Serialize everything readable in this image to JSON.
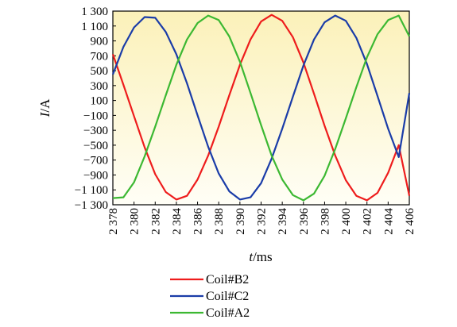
{
  "chart_data": {
    "type": "line",
    "title": "",
    "xlabel": "t/ms",
    "xlabel_italic": "t",
    "xlabel_unit": "/ms",
    "ylabel": "I/A",
    "ylabel_italic": "I",
    "ylabel_unit": "/A",
    "xlim": [
      2378,
      2406
    ],
    "ylim": [
      -1300,
      1300
    ],
    "x_ticks": [
      2378,
      2380,
      2382,
      2384,
      2386,
      2388,
      2390,
      2392,
      2394,
      2396,
      2398,
      2400,
      2402,
      2404,
      2406
    ],
    "x_tick_labels": [
      "2 378",
      "2 380",
      "2 382",
      "2 384",
      "2 386",
      "2 388",
      "2 390",
      "2 392",
      "2 394",
      "2 396",
      "2 398",
      "2 400",
      "2 402",
      "2 404",
      "2 406"
    ],
    "y_ticks": [
      1300,
      1100,
      900,
      700,
      500,
      300,
      100,
      -100,
      -300,
      -500,
      -700,
      -900,
      -1100,
      -1300
    ],
    "y_tick_labels": [
      "1 300",
      "1 100",
      "900",
      "700",
      "500",
      "300",
      "100",
      "−100",
      "−300",
      "−500",
      "−700",
      "−900",
      "−1 100",
      "−1 300"
    ],
    "grid": false,
    "legend_position": "bottom",
    "background": "gradient-yellow",
    "x": [
      2378,
      2379,
      2380,
      2381,
      2382,
      2383,
      2384,
      2385,
      2386,
      2387,
      2388,
      2389,
      2390,
      2391,
      2392,
      2393,
      2394,
      2395,
      2396,
      2397,
      2398,
      2399,
      2400,
      2401,
      2402,
      2403,
      2404,
      2405,
      2406
    ],
    "series": [
      {
        "name": "Coil#B2",
        "color": "#ee1c1c",
        "values": [
          720,
          310,
          -110,
          -530,
          -890,
          -1130,
          -1230,
          -1180,
          -960,
          -640,
          -250,
          170,
          580,
          920,
          1160,
          1250,
          1170,
          950,
          610,
          190,
          -240,
          -640,
          -970,
          -1180,
          -1240,
          -1140,
          -870,
          -500,
          -1180
        ]
      },
      {
        "name": "Coil#C2",
        "color": "#1a3ca8",
        "values": [
          450,
          820,
          1080,
          1220,
          1210,
          1020,
          720,
          330,
          -100,
          -520,
          -880,
          -1120,
          -1230,
          -1200,
          -1010,
          -680,
          -280,
          150,
          570,
          920,
          1150,
          1240,
          1170,
          940,
          590,
          160,
          -280,
          -660,
          200
        ]
      },
      {
        "name": "Coil#A2",
        "color": "#3cb832",
        "values": [
          -1210,
          -1200,
          -1000,
          -650,
          -250,
          170,
          580,
          920,
          1140,
          1240,
          1180,
          960,
          620,
          200,
          -230,
          -640,
          -960,
          -1170,
          -1240,
          -1150,
          -910,
          -550,
          -140,
          280,
          680,
          990,
          1180,
          1240,
          960
        ]
      }
    ]
  }
}
